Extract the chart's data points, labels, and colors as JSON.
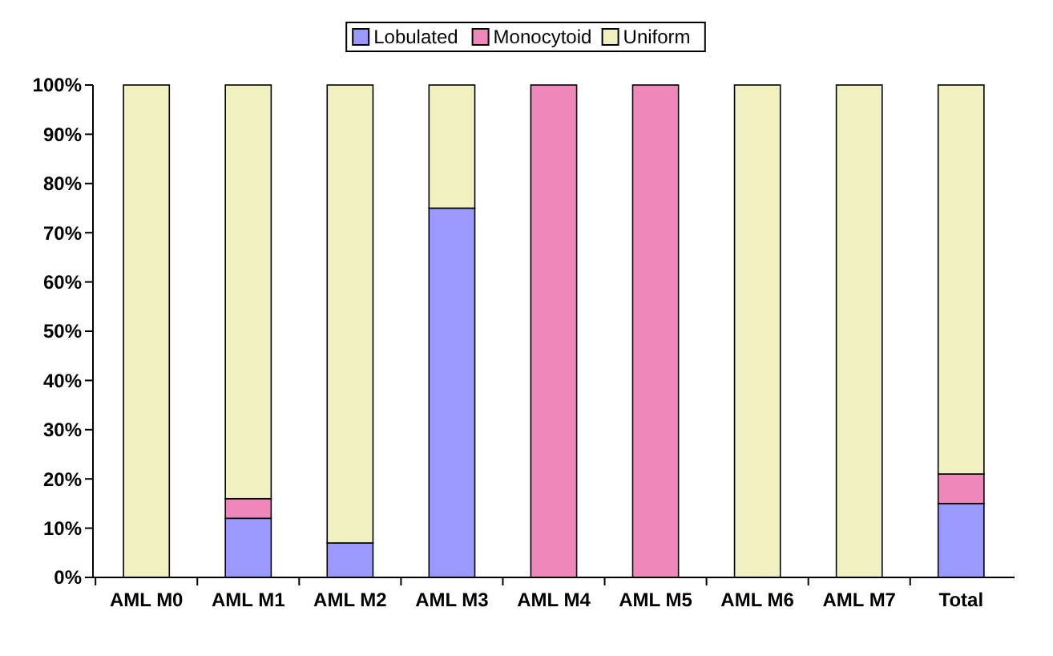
{
  "chart_data": {
    "type": "bar",
    "stacked": true,
    "categories": [
      "AML M0",
      "AML M1",
      "AML M2",
      "AML M3",
      "AML M4",
      "AML M5",
      "AML M6",
      "AML M7",
      "Total"
    ],
    "series": [
      {
        "name": "Lobulated",
        "color": "#9999ff",
        "values": [
          0,
          12,
          7,
          75,
          0,
          0,
          0,
          0,
          15
        ]
      },
      {
        "name": "Monocytoid",
        "color": "#ee88bb",
        "values": [
          0,
          4,
          0,
          0,
          100,
          100,
          0,
          0,
          6
        ]
      },
      {
        "name": "Uniform",
        "color": "#f0f0c0",
        "values": [
          100,
          84,
          93,
          25,
          0,
          0,
          100,
          100,
          79
        ]
      }
    ],
    "ylim": [
      0,
      100
    ],
    "yticks": [
      {
        "value": 0,
        "label": "0%"
      },
      {
        "value": 10,
        "label": "10%"
      },
      {
        "value": 20,
        "label": "20%"
      },
      {
        "value": 30,
        "label": "30%"
      },
      {
        "value": 40,
        "label": "40%"
      },
      {
        "value": 50,
        "label": "50%"
      },
      {
        "value": 60,
        "label": "60%"
      },
      {
        "value": 70,
        "label": "70%"
      },
      {
        "value": 80,
        "label": "80%"
      },
      {
        "value": 90,
        "label": "90%"
      },
      {
        "value": 100,
        "label": "100%"
      }
    ],
    "legend": "top"
  }
}
